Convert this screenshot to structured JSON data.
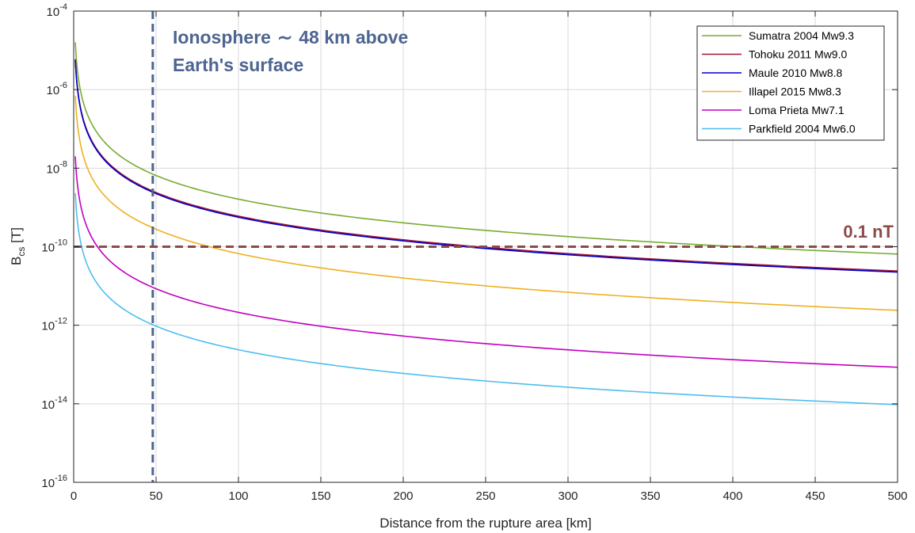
{
  "chart_data": {
    "type": "line",
    "xlabel": "Distance from the rupture area [km]",
    "ylabel": {
      "base": "B",
      "sub": "cs",
      "unit": " [T]"
    },
    "xlim": [
      0,
      500
    ],
    "ylim_exponents": [
      -16,
      -4
    ],
    "yscale": "log",
    "grid": true,
    "legend_position": "top-right",
    "x_ticks": [
      0,
      50,
      100,
      150,
      200,
      250,
      300,
      350,
      400,
      450,
      500
    ],
    "x_tick_labels": [
      "0",
      "50",
      "100",
      "150",
      "200",
      "250",
      "300",
      "350",
      "400",
      "450",
      "500"
    ],
    "y_tick_exponents": [
      -16,
      -14,
      -12,
      -10,
      -8,
      -6,
      -4
    ],
    "y_tick_labels": [
      {
        "base": "10",
        "exp": "-16"
      },
      {
        "base": "10",
        "exp": "-14"
      },
      {
        "base": "10",
        "exp": "-12"
      },
      {
        "base": "10",
        "exp": "-10"
      },
      {
        "base": "10",
        "exp": "-8"
      },
      {
        "base": "10",
        "exp": "-6"
      },
      {
        "base": "10",
        "exp": "-4"
      }
    ],
    "x": [
      1,
      50,
      500
    ],
    "series": [
      {
        "name": "Sumatra 2004 Mw9.3",
        "color": "#77ac30",
        "values": [
          1.6e-05,
          6.5e-09,
          6.5e-11
        ]
      },
      {
        "name": "Tohoku 2011 Mw9.0",
        "color": "#a2142f",
        "values": [
          6e-06,
          2.4e-09,
          2.4e-11
        ]
      },
      {
        "name": "Maule 2010 Mw8.8",
        "color": "#0000cc",
        "values": [
          5.6e-06,
          2.25e-09,
          2.25e-11
        ]
      },
      {
        "name": "Illapel 2015 Mw8.3",
        "color": "#edb120",
        "values": [
          7e-07,
          2.8e-10,
          2.4e-12
        ]
      },
      {
        "name": "Loma Prieta Mw7.1",
        "color": "#c000c0",
        "values": [
          2e-08,
          8.5e-12,
          8.5e-14
        ]
      },
      {
        "name": "Parkfield 2004 Mw6.0",
        "color": "#4dbeee",
        "values": [
          2.3e-09,
          9.5e-13,
          9.5e-15
        ]
      }
    ],
    "annotations": {
      "ionosphere": {
        "lines": [
          "Ionosphere",
          "∼",
          "48 km above",
          "Earth's surface"
        ],
        "x": 48,
        "color": "#4d6591"
      },
      "threshold": {
        "label": "0.1 nT",
        "y": 1e-10,
        "color": "#8b4a4a"
      }
    }
  }
}
